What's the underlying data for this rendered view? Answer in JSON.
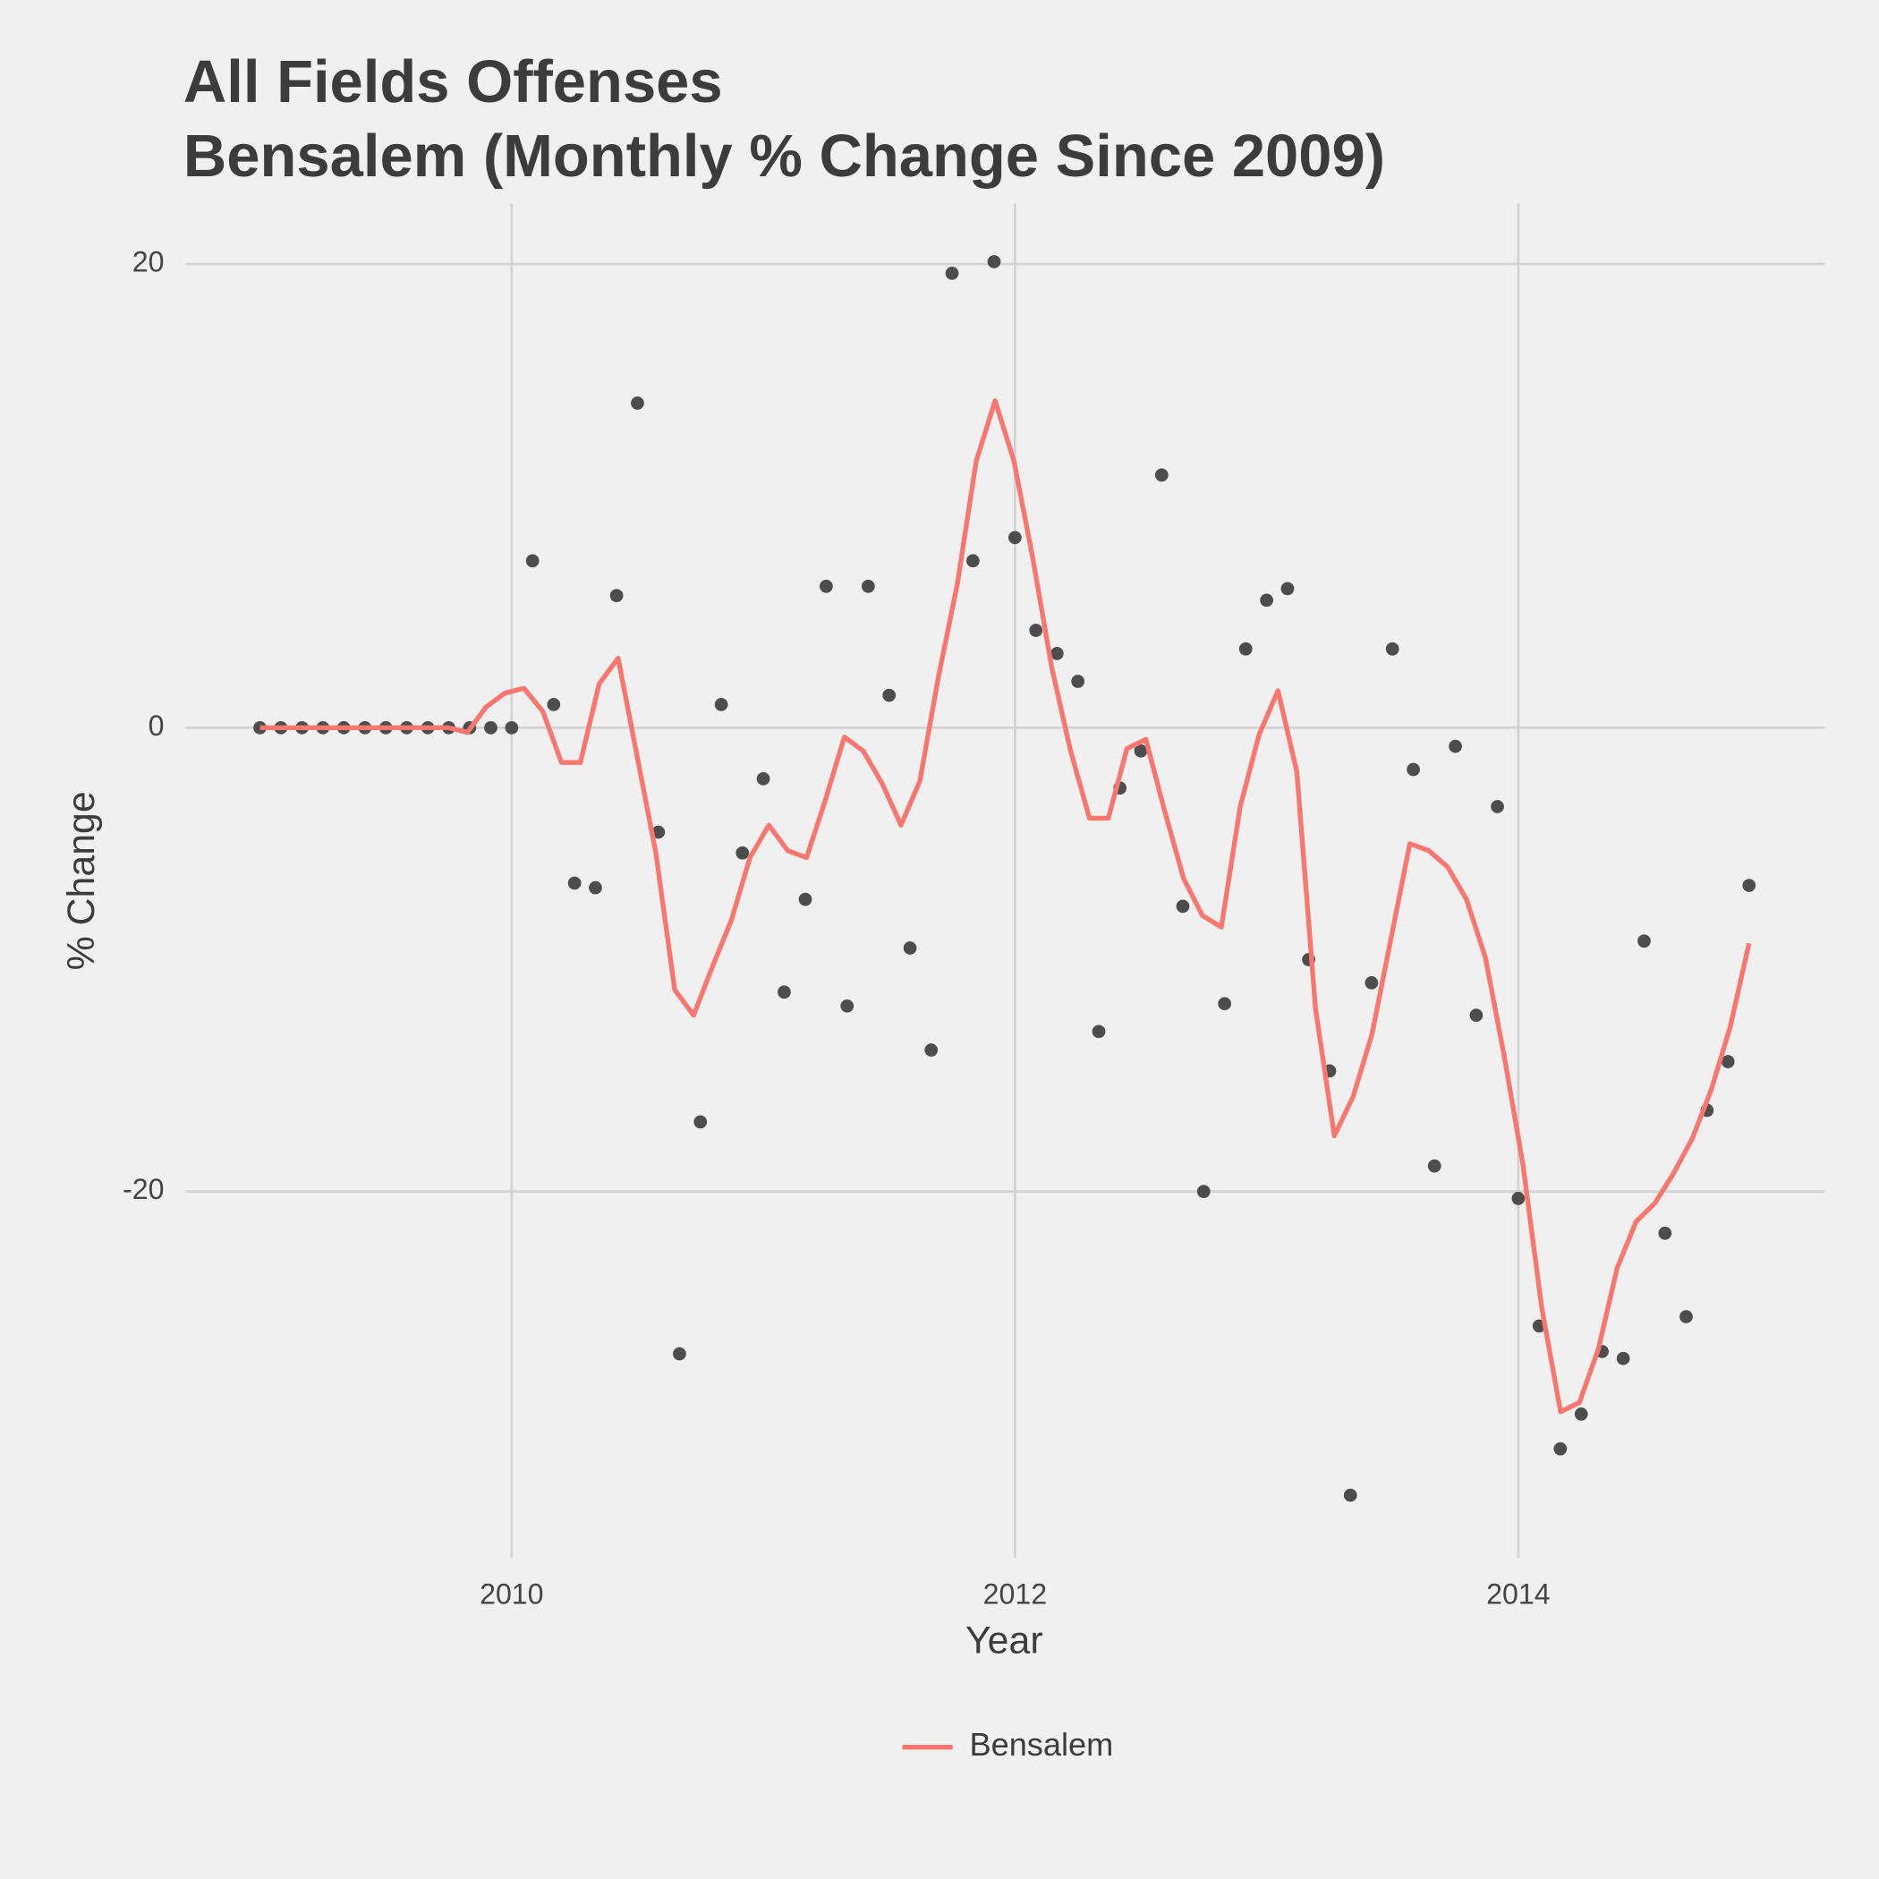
{
  "chart_data": {
    "type": "line",
    "title": "All Fields Offenses",
    "subtitle": "Bensalem (Monthly % Change Since 2009)",
    "x_label": "Year",
    "y_label": "% Change",
    "xlim": [
      2008.705,
      2015.219
    ],
    "ylim": [
      -35.8,
      22.6
    ],
    "xticks": [
      2010,
      2012,
      2014
    ],
    "yticks": [
      -20,
      0,
      20
    ],
    "grid": true,
    "legend": "bottom",
    "series": [
      {
        "name": "Bensalem",
        "color": "#f8766d",
        "x": [
          2009.0,
          2009.075,
          2009.15,
          2009.225,
          2009.3,
          2009.375,
          2009.449,
          2009.524,
          2009.599,
          2009.674,
          2009.749,
          2009.824,
          2009.899,
          2009.974,
          2010.049,
          2010.124,
          2010.198,
          2010.273,
          2010.348,
          2010.423,
          2010.498,
          2010.573,
          2010.648,
          2010.723,
          2010.798,
          2010.873,
          2010.947,
          2011.022,
          2011.097,
          2011.172,
          2011.247,
          2011.322,
          2011.397,
          2011.472,
          2011.547,
          2011.622,
          2011.696,
          2011.771,
          2011.846,
          2011.921,
          2011.996,
          2012.071,
          2012.146,
          2012.221,
          2012.296,
          2012.371,
          2012.445,
          2012.52,
          2012.595,
          2012.67,
          2012.745,
          2012.82,
          2012.895,
          2012.97,
          2013.045,
          2013.12,
          2013.194,
          2013.269,
          2013.344,
          2013.419,
          2013.494,
          2013.569,
          2013.644,
          2013.719,
          2013.794,
          2013.869,
          2013.943,
          2014.018,
          2014.093,
          2014.168,
          2014.243,
          2014.318,
          2014.393,
          2014.468,
          2014.543,
          2014.618,
          2014.692,
          2014.767,
          2014.842,
          2014.917
        ],
        "values": [
          0,
          0,
          0,
          0,
          0,
          0,
          0,
          0,
          0,
          0,
          0,
          -0.2,
          0.9,
          1.5,
          1.7,
          0.7,
          -1.5,
          -1.5,
          1.9,
          3.0,
          -1.2,
          -5.4,
          -11.3,
          -12.4,
          -10.3,
          -8.3,
          -5.6,
          -4.2,
          -5.3,
          -5.6,
          -3.1,
          -0.4,
          -1.0,
          -2.4,
          -4.2,
          -2.3,
          2.2,
          6.2,
          11.5,
          14.1,
          11.5,
          7.3,
          2.6,
          -1.0,
          -3.9,
          -3.9,
          -0.9,
          -0.5,
          -3.6,
          -6.5,
          -8.1,
          -8.6,
          -3.4,
          -0.3,
          1.6,
          -1.9,
          -12.1,
          -17.6,
          -15.9,
          -13.2,
          -9.1,
          -5.0,
          -5.3,
          -6.0,
          -7.4,
          -9.9,
          -14.1,
          -18.8,
          -25.0,
          -29.5,
          -29.1,
          -26.8,
          -23.3,
          -21.3,
          -20.5,
          -19.2,
          -17.7,
          -15.6,
          -12.9,
          -9.3
        ]
      }
    ],
    "points": {
      "color": "#4d4d4d",
      "x": [
        2009.0,
        2009.083,
        2009.167,
        2009.25,
        2009.333,
        2009.417,
        2009.5,
        2009.583,
        2009.667,
        2009.75,
        2009.833,
        2009.917,
        2010.0,
        2010.083,
        2010.167,
        2010.25,
        2010.333,
        2010.417,
        2010.5,
        2010.583,
        2010.667,
        2010.75,
        2010.833,
        2010.917,
        2011.0,
        2011.083,
        2011.167,
        2011.25,
        2011.333,
        2011.417,
        2011.5,
        2011.583,
        2011.667,
        2011.75,
        2011.833,
        2011.917,
        2012.0,
        2012.083,
        2012.167,
        2012.25,
        2012.333,
        2012.417,
        2012.5,
        2012.583,
        2012.667,
        2012.75,
        2012.833,
        2012.917,
        2013.0,
        2013.083,
        2013.167,
        2013.25,
        2013.333,
        2013.417,
        2013.5,
        2013.583,
        2013.667,
        2013.75,
        2013.833,
        2013.917,
        2014.0,
        2014.083,
        2014.167,
        2014.25,
        2014.333,
        2014.417,
        2014.5,
        2014.583,
        2014.667,
        2014.75,
        2014.833,
        2014.917
      ],
      "values": [
        0,
        0,
        0,
        0,
        0,
        0,
        0,
        0,
        0,
        0,
        0,
        0,
        0,
        7.2,
        1.0,
        -6.7,
        -6.9,
        5.7,
        14.0,
        -4.5,
        -27.0,
        -17.0,
        1.0,
        -5.4,
        -2.2,
        -11.4,
        -7.4,
        6.1,
        -12.0,
        6.1,
        1.4,
        -9.5,
        -13.9,
        19.6,
        7.2,
        20.1,
        8.2,
        4.2,
        3.2,
        2.0,
        -13.1,
        -2.6,
        -1.0,
        10.9,
        -7.7,
        -20.0,
        -11.9,
        3.4,
        5.5,
        6.0,
        -10.0,
        -14.8,
        -33.1,
        -11.0,
        3.4,
        -1.8,
        -18.9,
        -0.8,
        -12.4,
        -3.4,
        -20.3,
        -25.8,
        -31.1,
        -29.6,
        -26.9,
        -27.2,
        -9.2,
        -21.8,
        -25.4,
        -16.5,
        -14.4,
        -6.8
      ]
    }
  }
}
